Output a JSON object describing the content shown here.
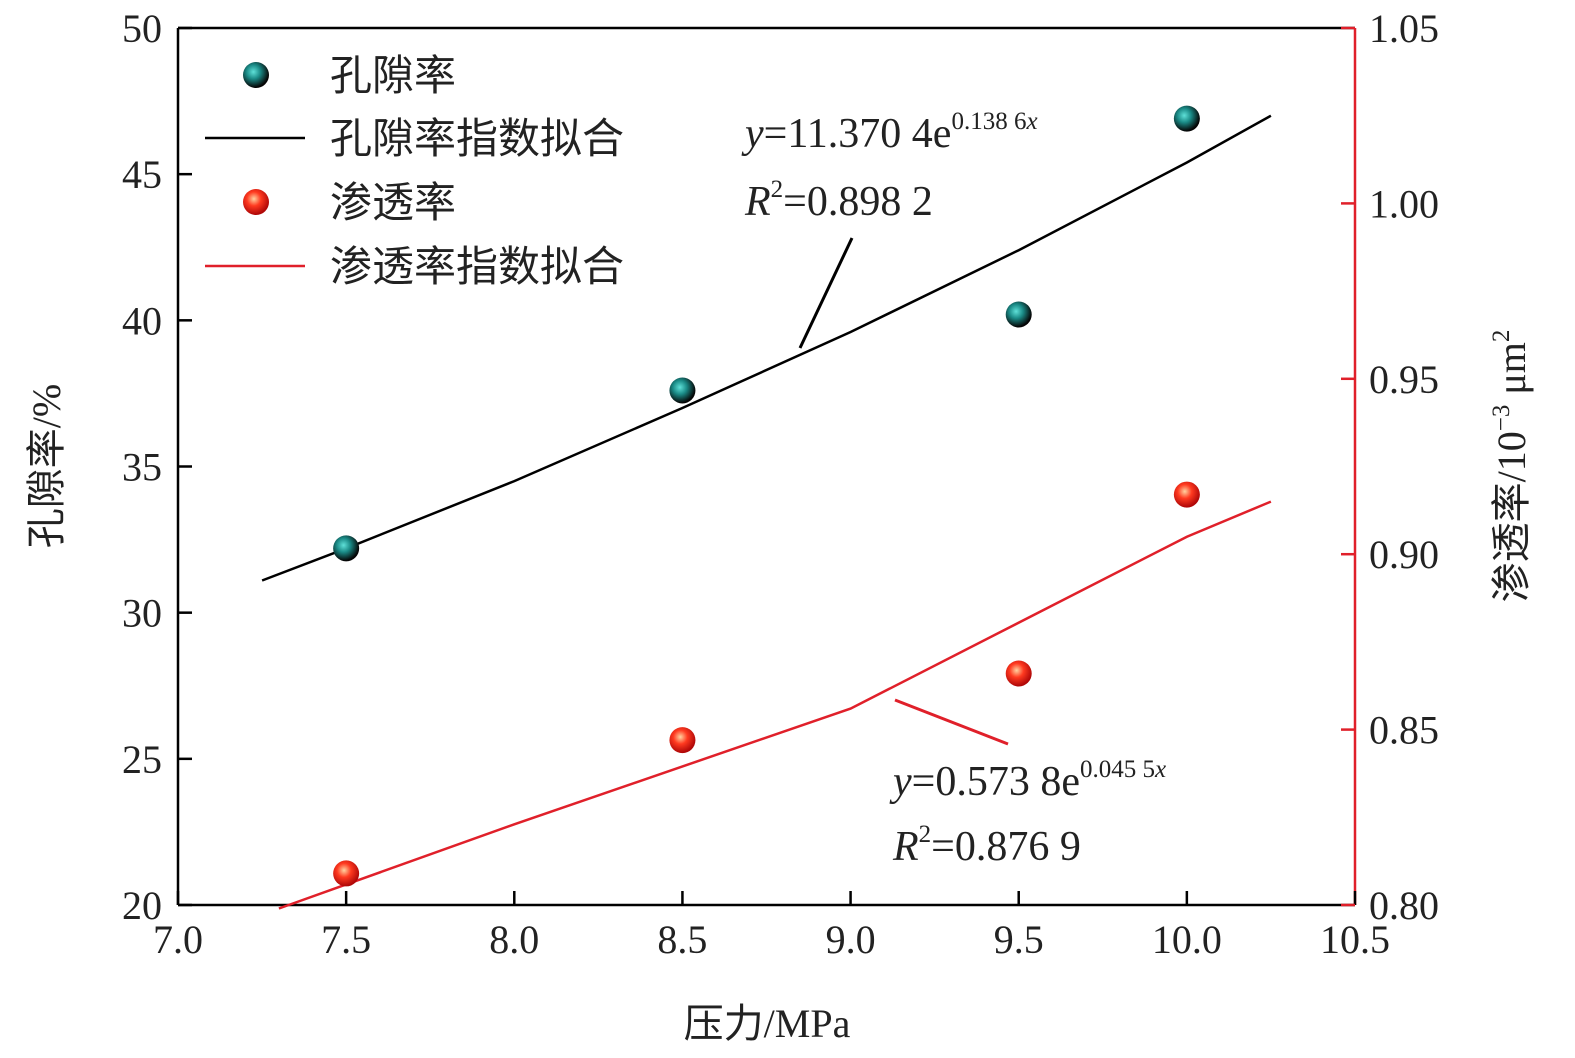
{
  "chart_data": {
    "type": "scatter",
    "xlabel": "压力/MPa",
    "ylabel_left": "孔隙率/%",
    "ylabel_right_main": "渗透率/10",
    "ylabel_right_exp": "−3",
    "ylabel_right_unit": " μm",
    "ylabel_right_unit_exp": "2",
    "xlim": [
      7.0,
      10.5
    ],
    "ylim_left": [
      20,
      50
    ],
    "ylim_right": [
      0.8,
      1.05
    ],
    "x_ticks": [
      "7.0",
      "7.5",
      "8.0",
      "8.5",
      "9.0",
      "9.5",
      "10.0",
      "10.5"
    ],
    "y_left_ticks": [
      "20",
      "25",
      "30",
      "35",
      "40",
      "45",
      "50"
    ],
    "y_right_ticks": [
      "0.80",
      "0.85",
      "0.90",
      "0.95",
      "1.00",
      "1.05"
    ],
    "axis_colors": {
      "left": "#000000",
      "right": "#e0202a"
    },
    "series": [
      {
        "name": "孔隙率",
        "axis": "left",
        "kind": "points",
        "color": "#1a8a86",
        "x": [
          7.5,
          8.5,
          9.5,
          10.0
        ],
        "y": [
          32.2,
          37.6,
          40.2,
          46.9
        ]
      },
      {
        "name": "孔隙率指数拟合",
        "axis": "left",
        "kind": "line",
        "color": "#000000",
        "x": [
          7.25,
          7.5,
          8.0,
          8.5,
          9.0,
          9.5,
          10.0,
          10.25
        ],
        "y": [
          31.1,
          32.2,
          34.5,
          37.0,
          39.6,
          42.4,
          45.4,
          47.0
        ]
      },
      {
        "name": "渗透率",
        "axis": "right",
        "kind": "points",
        "color": "#e8221c",
        "x": [
          7.5,
          8.5,
          9.5,
          10.0
        ],
        "y": [
          0.809,
          0.847,
          0.866,
          0.917
        ]
      },
      {
        "name": "渗透率指数拟合",
        "axis": "right",
        "kind": "line",
        "color": "#e0202a",
        "x": [
          7.3,
          8.0,
          9.0,
          10.0,
          10.25
        ],
        "y": [
          0.799,
          0.823,
          0.856,
          0.905,
          0.915
        ]
      }
    ],
    "annotations": [
      {
        "id": "porosity-fit",
        "eq_y": "y",
        "eq_main": "=11.370 4e",
        "eq_exp": "0.138 6",
        "eq_exp_var": "x",
        "r2_r": "R",
        "r2_sup": "2",
        "r2_value": "=0.898 2"
      },
      {
        "id": "permeability-fit",
        "eq_y": "y",
        "eq_main": "=0.573 8e",
        "eq_exp": "0.045 5",
        "eq_exp_var": "x",
        "r2_r": "R",
        "r2_sup": "2",
        "r2_value": "=0.876 9"
      }
    ],
    "legend": {
      "position": "top-left"
    },
    "grid": false
  }
}
